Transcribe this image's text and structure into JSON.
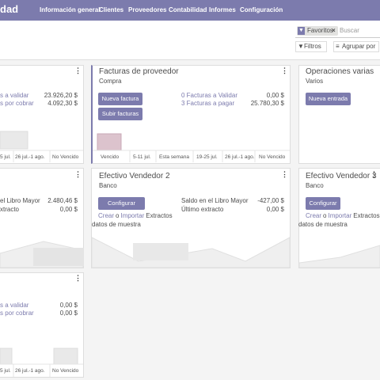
{
  "navbar": {
    "app": "dad",
    "menu": [
      "Información general",
      "Clientes",
      "Proveedores",
      "Contabilidad",
      "Informes",
      "Configuración"
    ]
  },
  "search": {
    "facet": "Favoritos",
    "placeholder": "Buscar"
  },
  "controls": {
    "filters": "Filtros",
    "group_by": "Agrupar por"
  },
  "cards": [
    {
      "stats": [
        {
          "label": "s a validar",
          "value": "23.926,20 $"
        },
        {
          "label": "s por cobrar",
          "value": "4.092,30 $"
        }
      ],
      "chart_labels": [
        "5 jul.",
        "26 jul.-1 ago.",
        "No Vencido"
      ]
    },
    {
      "title": "Facturas de proveedor",
      "subtitle": "Compra",
      "buttons": [
        "Nueva factura",
        "Subir facturas"
      ],
      "stats": [
        {
          "label": "0 Facturas a Validar",
          "value": "0,00 $"
        },
        {
          "label": "3 Facturas a pagar",
          "value": "25.780,30 $"
        }
      ],
      "chart_labels": [
        "Vencido",
        "5-11 jul.",
        "Esta semana",
        "19-25 jul.",
        "26 jul.-1 ago.",
        "No Vencido"
      ]
    },
    {
      "title": "Operaciones varias",
      "subtitle": "Varios",
      "buttons": [
        "Nueva entrada"
      ]
    },
    {
      "stats": [
        {
          "label": "el Libro Mayor",
          "value": "2.480,46 $"
        },
        {
          "label": "xtracto",
          "value": "0,00 $"
        }
      ]
    },
    {
      "title": "Efectivo Vendedor 2",
      "subtitle": "Banco",
      "buttons": [
        "Configurar"
      ],
      "stats": [
        {
          "label": "Saldo en el Libro Mayor",
          "value": "-427,00 $"
        },
        {
          "label": "Último extracto",
          "value": "0,00 $"
        }
      ],
      "links": [
        "Crear",
        "o",
        "Importar",
        "Extractos"
      ],
      "sample": "datos de muestra"
    },
    {
      "title": "Efectivo Vendedor 3",
      "subtitle": "Banco",
      "buttons": [
        "Configurar"
      ],
      "links": [
        "Crear",
        "o",
        "Importar",
        "Extractos"
      ],
      "sample": "datos de muestra"
    },
    {
      "stats": [
        {
          "label": "s a validar",
          "value": "0,00 $"
        },
        {
          "label": "s por cobrar",
          "value": "0,00 $"
        }
      ],
      "chart_labels": [
        "5 jul.",
        "26 jul.-1 ago.",
        "No Vencido"
      ]
    }
  ]
}
